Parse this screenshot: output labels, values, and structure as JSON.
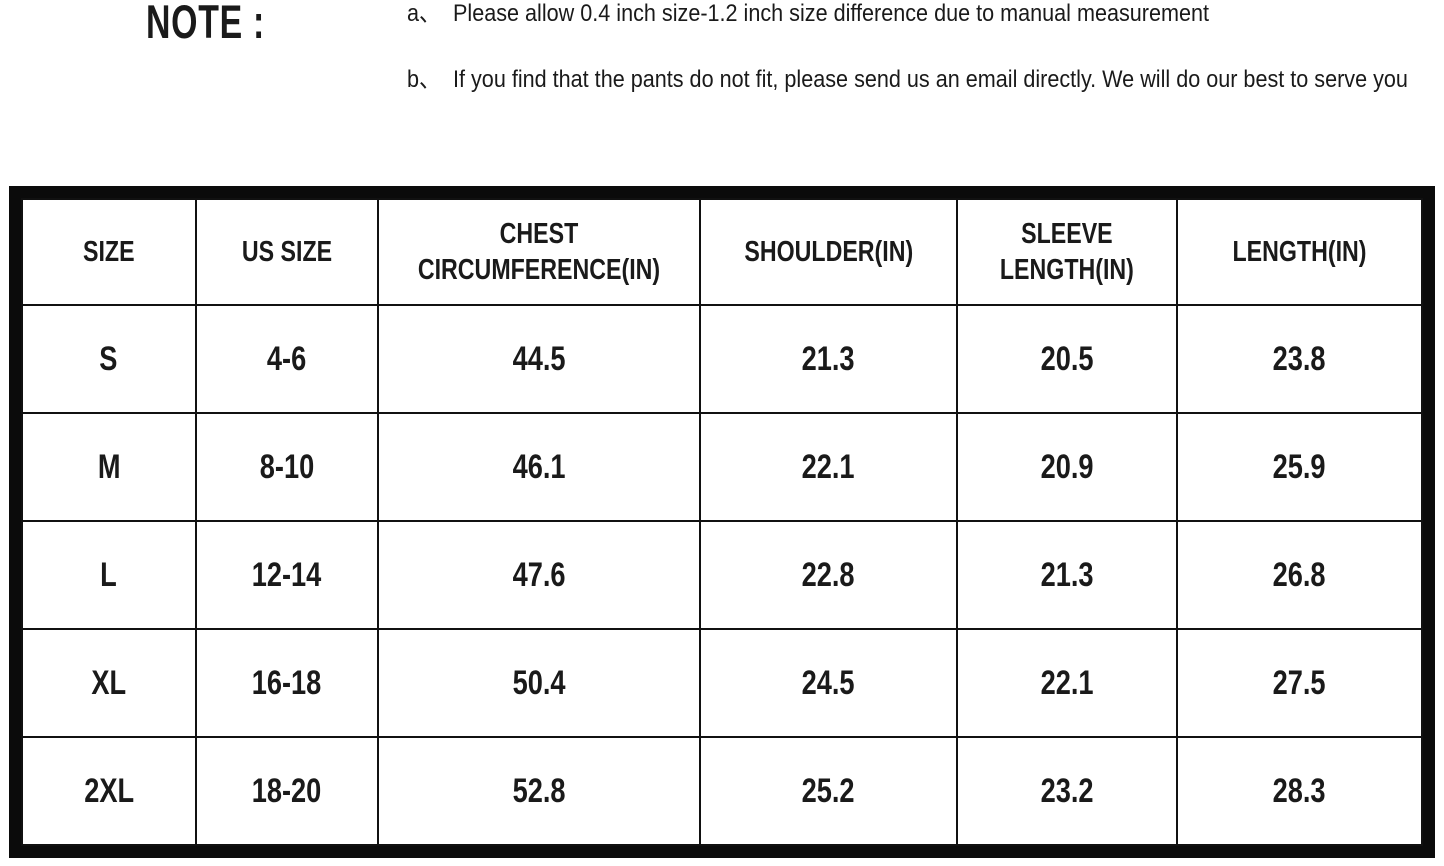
{
  "page": {
    "background_color": "#ffffff",
    "text_color": "#1a1a1a",
    "border_color": "#0b0b0b"
  },
  "note": {
    "label": "NOTE :",
    "items": [
      {
        "marker": "a、",
        "text": "Please allow 0.4 inch size-1.2 inch size difference due to manual measurement"
      },
      {
        "marker": "b、",
        "text": "If you find that the pants do not fit, please send us an email directly. We will do our best to serve you"
      }
    ]
  },
  "size_chart": {
    "headers": [
      {
        "lines": [
          "SIZE"
        ]
      },
      {
        "lines": [
          "US SIZE"
        ]
      },
      {
        "lines": [
          "CHEST",
          "CIRCUMFERENCE(IN)"
        ]
      },
      {
        "lines": [
          "SHOULDER(IN)"
        ]
      },
      {
        "lines": [
          "SLEEVE",
          "LENGTH(IN)"
        ]
      },
      {
        "lines": [
          "LENGTH(IN)"
        ]
      }
    ],
    "rows": [
      {
        "size": "S",
        "us_size": "4-6",
        "chest": "44.5",
        "shoulder": "21.3",
        "sleeve": "20.5",
        "length": "23.8"
      },
      {
        "size": "M",
        "us_size": "8-10",
        "chest": "46.1",
        "shoulder": "22.1",
        "sleeve": "20.9",
        "length": "25.9"
      },
      {
        "size": "L",
        "us_size": "12-14",
        "chest": "47.6",
        "shoulder": "22.8",
        "sleeve": "21.3",
        "length": "26.8"
      },
      {
        "size": "XL",
        "us_size": "16-18",
        "chest": "50.4",
        "shoulder": "24.5",
        "sleeve": "22.1",
        "length": "27.5"
      },
      {
        "size": "2XL",
        "us_size": "18-20",
        "chest": "52.8",
        "shoulder": "25.2",
        "sleeve": "23.2",
        "length": "28.3"
      }
    ]
  }
}
